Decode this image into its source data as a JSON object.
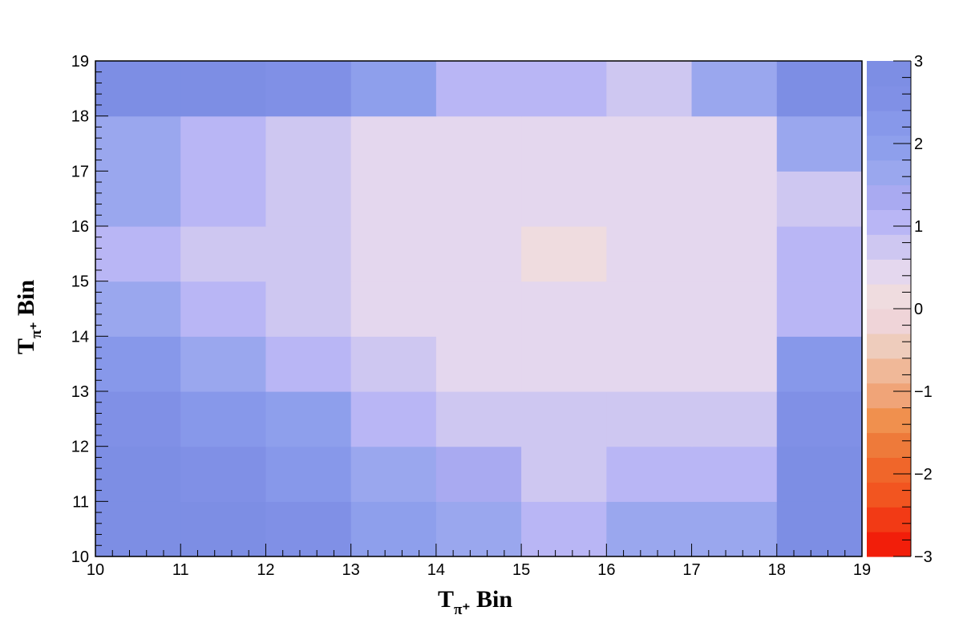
{
  "chart_data": {
    "type": "heatmap",
    "xlabel": {
      "main": "T",
      "sub": "π⁺",
      "rest": " Bin"
    },
    "ylabel": {
      "main": "T",
      "sub": "π⁺",
      "rest": " Bin"
    },
    "x_edges": [
      10,
      11,
      12,
      13,
      14,
      15,
      16,
      17,
      18,
      19
    ],
    "y_edges": [
      10,
      11,
      12,
      13,
      14,
      15,
      16,
      17,
      18,
      19
    ],
    "xlim": [
      10,
      19
    ],
    "ylim": [
      10,
      19
    ],
    "zlim": [
      -3,
      3
    ],
    "x_ticks": [
      "10",
      "11",
      "12",
      "13",
      "14",
      "15",
      "16",
      "17",
      "18",
      "19"
    ],
    "y_ticks": [
      "10",
      "11",
      "12",
      "13",
      "14",
      "15",
      "16",
      "17",
      "18",
      "19"
    ],
    "z_ticks": [
      "−3",
      "−2",
      "−1",
      "0",
      "1",
      "2",
      "3"
    ],
    "z_tick_values": [
      -3,
      -2,
      -1,
      0,
      1,
      2,
      3
    ],
    "palette_levels": 20,
    "palette_colors": [
      "#f21e0a",
      "#f23a15",
      "#f25520",
      "#f0662a",
      "#ee7a3a",
      "#f0904e",
      "#f0a478",
      "#f0b898",
      "#eeccbc",
      "#efd4d8",
      "#efdcdf",
      "#e4d7ee",
      "#cec7f1",
      "#b9b6f5",
      "#a9aaf1",
      "#9aa7ee",
      "#8e9fec",
      "#8798ea",
      "#8090e6",
      "#7d8ee4"
    ],
    "grid": false,
    "legend": "color-bar-right",
    "values": [
      [
        2.9,
        2.9,
        2.6,
        2.0,
        1.6,
        1.1,
        1.6,
        1.6,
        2.9
      ],
      [
        2.8,
        2.4,
        2.3,
        1.6,
        1.2,
        0.8,
        1.1,
        1.1,
        2.8
      ],
      [
        2.6,
        2.3,
        2.0,
        1.1,
        0.8,
        0.8,
        0.8,
        0.8,
        2.4
      ],
      [
        2.2,
        1.7,
        1.1,
        0.7,
        0.4,
        0.4,
        0.4,
        0.4,
        2.1
      ],
      [
        1.6,
        1.1,
        0.7,
        0.4,
        0.4,
        0.4,
        0.4,
        0.4,
        1.1
      ],
      [
        1.1,
        0.8,
        0.7,
        0.4,
        0.4,
        0.1,
        0.4,
        0.4,
        1.1
      ],
      [
        1.6,
        1.1,
        0.7,
        0.4,
        0.4,
        0.4,
        0.4,
        0.4,
        0.8
      ],
      [
        1.6,
        1.1,
        0.7,
        0.4,
        0.4,
        0.4,
        0.4,
        0.4,
        1.6
      ],
      [
        2.9,
        2.9,
        2.4,
        1.9,
        1.1,
        1.1,
        0.8,
        1.7,
        2.9
      ]
    ]
  }
}
